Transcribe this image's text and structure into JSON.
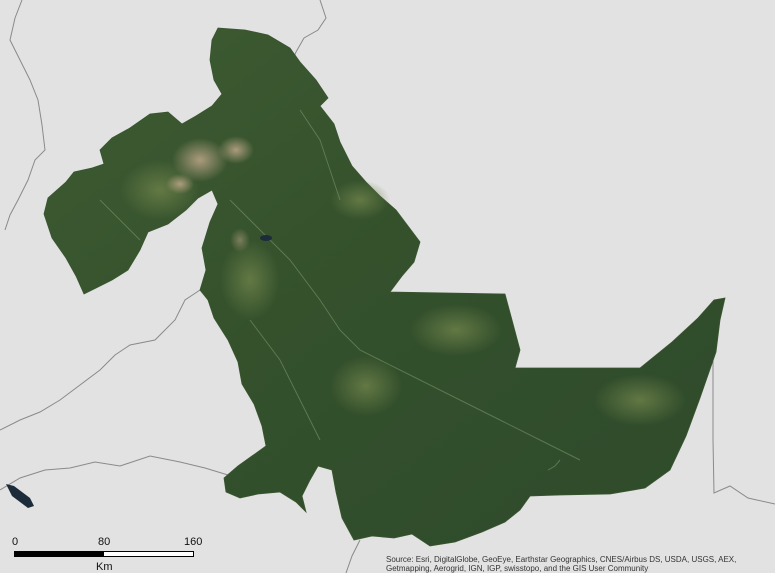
{
  "map": {
    "scale_bar": {
      "ticks": [
        "0",
        "80",
        "160"
      ],
      "unit": "Km"
    },
    "attribution": "Source: Esri, DigitalGlobe, GeoEye, Earthstar Geographics, CNES/Airbus DS, USDA, USGS, AEX, Getmapping, Aerogrid, IGN, IGP, swisstopo, and the GIS User Community",
    "colors": {
      "background": "#e2e2e2",
      "boundary_lines": "#8a8a8a",
      "forest_dark": "#2f4a2a",
      "forest_mid": "#3b5a30",
      "forest_light": "#56713f",
      "cleared_land": "#a8957a",
      "lake": "#1c2c3a"
    }
  }
}
